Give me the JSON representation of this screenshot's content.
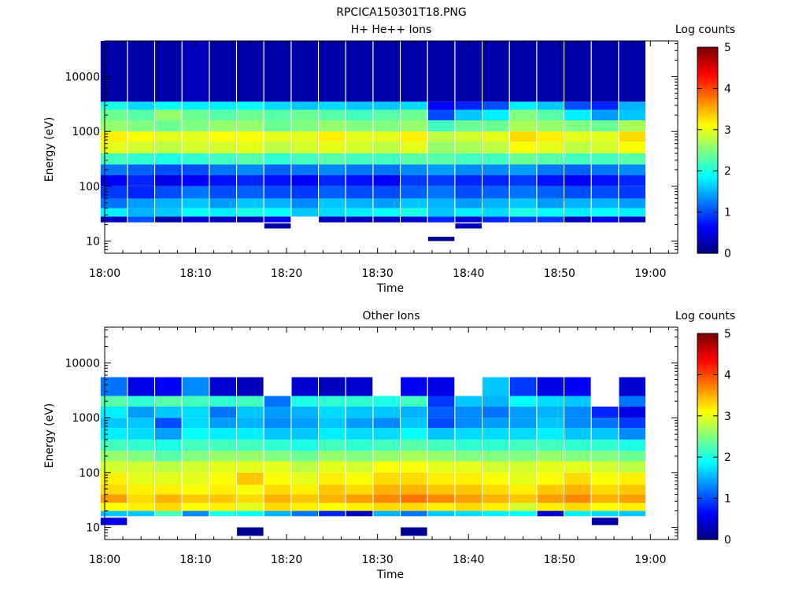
{
  "figure": {
    "title": "RPCICA150301T18.PNG"
  },
  "colorbar": {
    "label": "Log counts",
    "ticks": [
      "0",
      "1",
      "2",
      "3",
      "4",
      "5"
    ],
    "range": [
      0,
      5
    ],
    "colormap": "jet"
  },
  "chart_data": [
    {
      "type": "heatmap",
      "title": "H+ He++ Ions",
      "xlabel": "Time",
      "ylabel": "Energy (eV)",
      "x_ticks": [
        "18:00",
        "18:10",
        "18:20",
        "18:30",
        "18:40",
        "18:50",
        "19:00"
      ],
      "x_tick_values": [
        "18:00",
        "18:10",
        "18:20",
        "18:30",
        "18:40",
        "18:50",
        "19:00"
      ],
      "xlim": [
        "18:00",
        "19:03"
      ],
      "y_ticks": [
        "10",
        "100",
        "1000",
        "10000"
      ],
      "ylim": [
        6,
        45000
      ],
      "y_scale": "log",
      "zlabel": "Log counts",
      "zlim": [
        0,
        5
      ],
      "time_bins": [
        "18:01",
        "18:04",
        "18:07",
        "18:10",
        "18:13",
        "18:16",
        "18:19",
        "18:22",
        "18:25",
        "18:28",
        "18:31",
        "18:34",
        "18:37",
        "18:40",
        "18:43",
        "18:46",
        "18:49",
        "18:52",
        "18:55",
        "18:58"
      ],
      "energy_bands": [
        {
          "energy_range": [
            10,
            12
          ],
          "log_counts": [
            null,
            null,
            null,
            null,
            null,
            null,
            null,
            null,
            null,
            null,
            null,
            null,
            0.1,
            null,
            null,
            null,
            null,
            null,
            null,
            null
          ]
        },
        {
          "energy_range": [
            17,
            21
          ],
          "log_counts": [
            null,
            null,
            null,
            null,
            null,
            null,
            0.2,
            null,
            null,
            null,
            null,
            null,
            null,
            0.3,
            null,
            null,
            null,
            null,
            null,
            null
          ]
        },
        {
          "energy_range": [
            22,
            28
          ],
          "log_counts": [
            0.3,
            1.0,
            0.2,
            0.4,
            0.3,
            0.3,
            0.5,
            null,
            0.3,
            0.3,
            0.3,
            0.4,
            0.8,
            0.4,
            0.8,
            0.9,
            0.9,
            0.3,
            0.5,
            0.3
          ]
        },
        {
          "energy_range": [
            28,
            40
          ],
          "log_counts": [
            1.8,
            1.5,
            1.6,
            1.9,
            1.8,
            2.0,
            1.9,
            1.6,
            1.7,
            1.8,
            1.9,
            2.0,
            1.6,
            1.8,
            1.7,
            2.0,
            1.9,
            1.8,
            1.9,
            1.8
          ]
        },
        {
          "energy_range": [
            40,
            60
          ],
          "log_counts": [
            1.2,
            1.4,
            1.5,
            1.6,
            1.4,
            1.6,
            1.5,
            1.3,
            1.6,
            1.5,
            1.4,
            1.6,
            1.5,
            1.4,
            1.5,
            1.6,
            1.4,
            1.5,
            1.5,
            1.4
          ]
        },
        {
          "energy_range": [
            60,
            100
          ],
          "log_counts": [
            0.9,
            0.8,
            1.0,
            1.2,
            1.0,
            1.1,
            1.0,
            0.9,
            1.1,
            1.0,
            1.0,
            1.1,
            1.2,
            1.0,
            1.1,
            1.2,
            1.1,
            1.0,
            1.0,
            0.9
          ]
        },
        {
          "energy_range": [
            100,
            160
          ],
          "log_counts": [
            0.6,
            0.8,
            0.5,
            0.6,
            0.7,
            0.8,
            0.7,
            0.6,
            0.8,
            0.7,
            0.6,
            0.9,
            0.9,
            0.8,
            0.8,
            0.9,
            0.7,
            0.6,
            0.7,
            0.8
          ]
        },
        {
          "energy_range": [
            160,
            250
          ],
          "log_counts": [
            1.2,
            1.1,
            1.0,
            1.0,
            1.2,
            1.3,
            1.1,
            1.2,
            1.3,
            1.2,
            1.2,
            1.3,
            1.4,
            1.3,
            1.3,
            1.4,
            1.2,
            1.1,
            1.2,
            1.3
          ]
        },
        {
          "energy_range": [
            250,
            400
          ],
          "log_counts": [
            2.2,
            2.1,
            2.0,
            2.1,
            2.2,
            2.3,
            2.1,
            2.2,
            2.3,
            2.2,
            2.2,
            2.3,
            2.3,
            2.2,
            2.2,
            2.4,
            2.3,
            2.2,
            2.2,
            2.3
          ]
        },
        {
          "energy_range": [
            400,
            650
          ],
          "log_counts": [
            3.0,
            2.9,
            2.8,
            2.9,
            2.9,
            3.0,
            2.8,
            2.9,
            3.0,
            2.9,
            2.8,
            3.0,
            2.6,
            2.7,
            2.8,
            3.1,
            3.0,
            2.8,
            2.9,
            3.1
          ]
        },
        {
          "energy_range": [
            650,
            1000
          ],
          "log_counts": [
            3.2,
            3.1,
            3.0,
            3.0,
            3.1,
            3.1,
            3.0,
            3.0,
            3.2,
            3.0,
            3.0,
            3.2,
            2.8,
            2.9,
            3.0,
            3.3,
            3.2,
            3.0,
            3.0,
            3.3
          ]
        },
        {
          "energy_range": [
            1000,
            1600
          ],
          "log_counts": [
            2.6,
            2.5,
            2.4,
            2.5,
            2.6,
            2.6,
            2.4,
            2.5,
            2.6,
            2.5,
            2.5,
            2.6,
            2.2,
            2.4,
            2.4,
            2.7,
            2.6,
            2.5,
            2.4,
            2.7
          ]
        },
        {
          "energy_range": [
            1600,
            2500
          ],
          "log_counts": [
            2.4,
            2.3,
            2.6,
            2.4,
            2.3,
            2.4,
            2.3,
            2.4,
            2.3,
            2.2,
            2.3,
            2.4,
            1.0,
            1.6,
            1.8,
            2.5,
            2.3,
            1.8,
            1.4,
            1.6
          ]
        },
        {
          "energy_range": [
            2500,
            3500
          ],
          "log_counts": [
            2.0,
            1.7,
            1.9,
            1.8,
            1.8,
            1.9,
            1.7,
            1.6,
            1.7,
            1.6,
            1.6,
            1.7,
            0.6,
            0.8,
            1.0,
            1.8,
            1.6,
            1.0,
            0.8,
            1.5
          ]
        },
        {
          "energy_range": [
            3500,
            45000
          ],
          "log_counts": [
            0.2,
            0.2,
            0.2,
            0.3,
            0.2,
            0.2,
            0.2,
            0.2,
            0.2,
            0.2,
            0.2,
            0.2,
            0.2,
            0.2,
            0.2,
            0.2,
            0.2,
            0.2,
            0.2,
            0.2
          ]
        }
      ]
    },
    {
      "type": "heatmap",
      "title": "Other Ions",
      "xlabel": "Time",
      "ylabel": "Energy (eV)",
      "x_ticks": [
        "18:00",
        "18:10",
        "18:20",
        "18:30",
        "18:40",
        "18:50",
        "19:00"
      ],
      "x_tick_values": [
        "18:00",
        "18:10",
        "18:20",
        "18:30",
        "18:40",
        "18:50",
        "19:00"
      ],
      "xlim": [
        "18:00",
        "19:03"
      ],
      "y_ticks": [
        "10",
        "100",
        "1000",
        "10000"
      ],
      "ylim": [
        6,
        45000
      ],
      "y_scale": "log",
      "zlabel": "Log counts",
      "zlim": [
        0,
        5
      ],
      "time_bins": [
        "18:01",
        "18:04",
        "18:07",
        "18:10",
        "18:13",
        "18:16",
        "18:19",
        "18:22",
        "18:25",
        "18:28",
        "18:31",
        "18:34",
        "18:37",
        "18:40",
        "18:43",
        "18:46",
        "18:49",
        "18:52",
        "18:55",
        "18:58"
      ],
      "energy_bands": [
        {
          "energy_range": [
            7,
            10
          ],
          "log_counts": [
            null,
            null,
            null,
            null,
            null,
            0.1,
            null,
            null,
            null,
            null,
            null,
            0.1,
            null,
            null,
            null,
            null,
            null,
            null,
            null,
            null
          ]
        },
        {
          "energy_range": [
            11,
            15
          ],
          "log_counts": [
            0.5,
            null,
            null,
            null,
            null,
            null,
            null,
            null,
            null,
            null,
            null,
            null,
            null,
            null,
            null,
            null,
            null,
            null,
            0.2,
            null
          ]
        },
        {
          "energy_range": [
            16,
            20
          ],
          "log_counts": [
            1.6,
            1.6,
            2.2,
            1.3,
            2.0,
            1.9,
            1.5,
            1.2,
            0.8,
            0.3,
            1.5,
            1.2,
            1.6,
            1.7,
            1.8,
            1.9,
            0.4,
            1.8,
            1.7,
            1.6
          ]
        },
        {
          "energy_range": [
            20,
            28
          ],
          "log_counts": [
            3.1,
            3.2,
            3.3,
            3.1,
            3.2,
            3.0,
            3.3,
            3.2,
            3.1,
            3.2,
            3.3,
            3.3,
            3.2,
            3.3,
            3.2,
            2.9,
            3.2,
            3.3,
            3.1,
            3.2
          ]
        },
        {
          "energy_range": [
            28,
            40
          ],
          "log_counts": [
            3.6,
            3.3,
            3.5,
            3.4,
            3.4,
            3.3,
            3.5,
            3.4,
            3.5,
            3.6,
            3.7,
            3.8,
            3.7,
            3.6,
            3.5,
            3.4,
            3.6,
            3.7,
            3.5,
            3.6
          ]
        },
        {
          "energy_range": [
            40,
            60
          ],
          "log_counts": [
            3.3,
            3.2,
            3.2,
            3.1,
            3.2,
            3.1,
            3.3,
            3.2,
            3.4,
            3.3,
            3.5,
            3.5,
            3.4,
            3.4,
            3.3,
            3.2,
            3.4,
            3.5,
            3.3,
            3.4
          ]
        },
        {
          "energy_range": [
            60,
            100
          ],
          "log_counts": [
            3.2,
            3.0,
            3.0,
            3.0,
            3.1,
            3.4,
            3.1,
            3.0,
            3.2,
            3.1,
            3.3,
            3.3,
            3.2,
            3.2,
            3.1,
            3.0,
            3.1,
            3.3,
            3.1,
            3.2
          ]
        },
        {
          "energy_range": [
            100,
            160
          ],
          "log_counts": [
            2.9,
            2.9,
            2.8,
            2.9,
            3.0,
            3.0,
            3.0,
            2.8,
            3.0,
            2.9,
            3.1,
            3.1,
            3.0,
            3.0,
            2.9,
            2.9,
            3.0,
            3.0,
            2.9,
            2.8
          ]
        },
        {
          "energy_range": [
            160,
            250
          ],
          "log_counts": [
            2.6,
            2.5,
            2.3,
            2.5,
            2.6,
            2.6,
            2.5,
            2.4,
            2.6,
            2.5,
            2.6,
            2.7,
            2.6,
            2.5,
            2.5,
            2.5,
            2.6,
            2.5,
            2.5,
            2.4
          ]
        },
        {
          "energy_range": [
            250,
            400
          ],
          "log_counts": [
            2.2,
            2.1,
            2.0,
            2.2,
            2.2,
            2.2,
            2.1,
            2.0,
            2.2,
            2.1,
            2.2,
            2.3,
            2.2,
            2.1,
            2.1,
            2.2,
            2.2,
            2.1,
            2.1,
            2.0
          ]
        },
        {
          "energy_range": [
            400,
            650
          ],
          "log_counts": [
            1.8,
            1.7,
            1.4,
            1.9,
            1.8,
            1.8,
            1.6,
            1.6,
            1.8,
            1.7,
            1.7,
            1.9,
            1.6,
            1.7,
            1.7,
            1.7,
            1.8,
            1.6,
            1.6,
            1.3
          ]
        },
        {
          "energy_range": [
            650,
            1000
          ],
          "log_counts": [
            1.6,
            1.6,
            1.0,
            1.7,
            1.4,
            1.5,
            1.3,
            1.4,
            1.6,
            1.4,
            1.3,
            1.6,
            1.0,
            1.3,
            1.4,
            1.4,
            1.6,
            1.3,
            1.2,
            0.9
          ]
        },
        {
          "energy_range": [
            1000,
            1600
          ],
          "log_counts": [
            1.8,
            1.4,
            1.6,
            1.7,
            1.2,
            1.6,
            1.4,
            1.5,
            1.7,
            1.6,
            1.6,
            1.5,
            1.1,
            1.3,
            1.2,
            1.4,
            1.5,
            1.3,
            0.8,
            0.5
          ]
        },
        {
          "energy_range": [
            1600,
            2500
          ],
          "log_counts": [
            2.3,
            2.1,
            2.3,
            2.2,
            2.1,
            2.2,
            1.2,
            2.0,
            2.1,
            2.1,
            2.0,
            2.2,
            0.9,
            1.6,
            1.5,
            1.9,
            1.7,
            1.6,
            null,
            1.2
          ]
        },
        {
          "energy_range": [
            2500,
            5500
          ],
          "log_counts": [
            1.2,
            0.5,
            0.6,
            1.3,
            0.4,
            0.3,
            null,
            0.4,
            0.3,
            0.4,
            null,
            0.6,
            0.5,
            null,
            1.6,
            0.9,
            0.5,
            0.6,
            null,
            0.4
          ]
        }
      ]
    }
  ]
}
